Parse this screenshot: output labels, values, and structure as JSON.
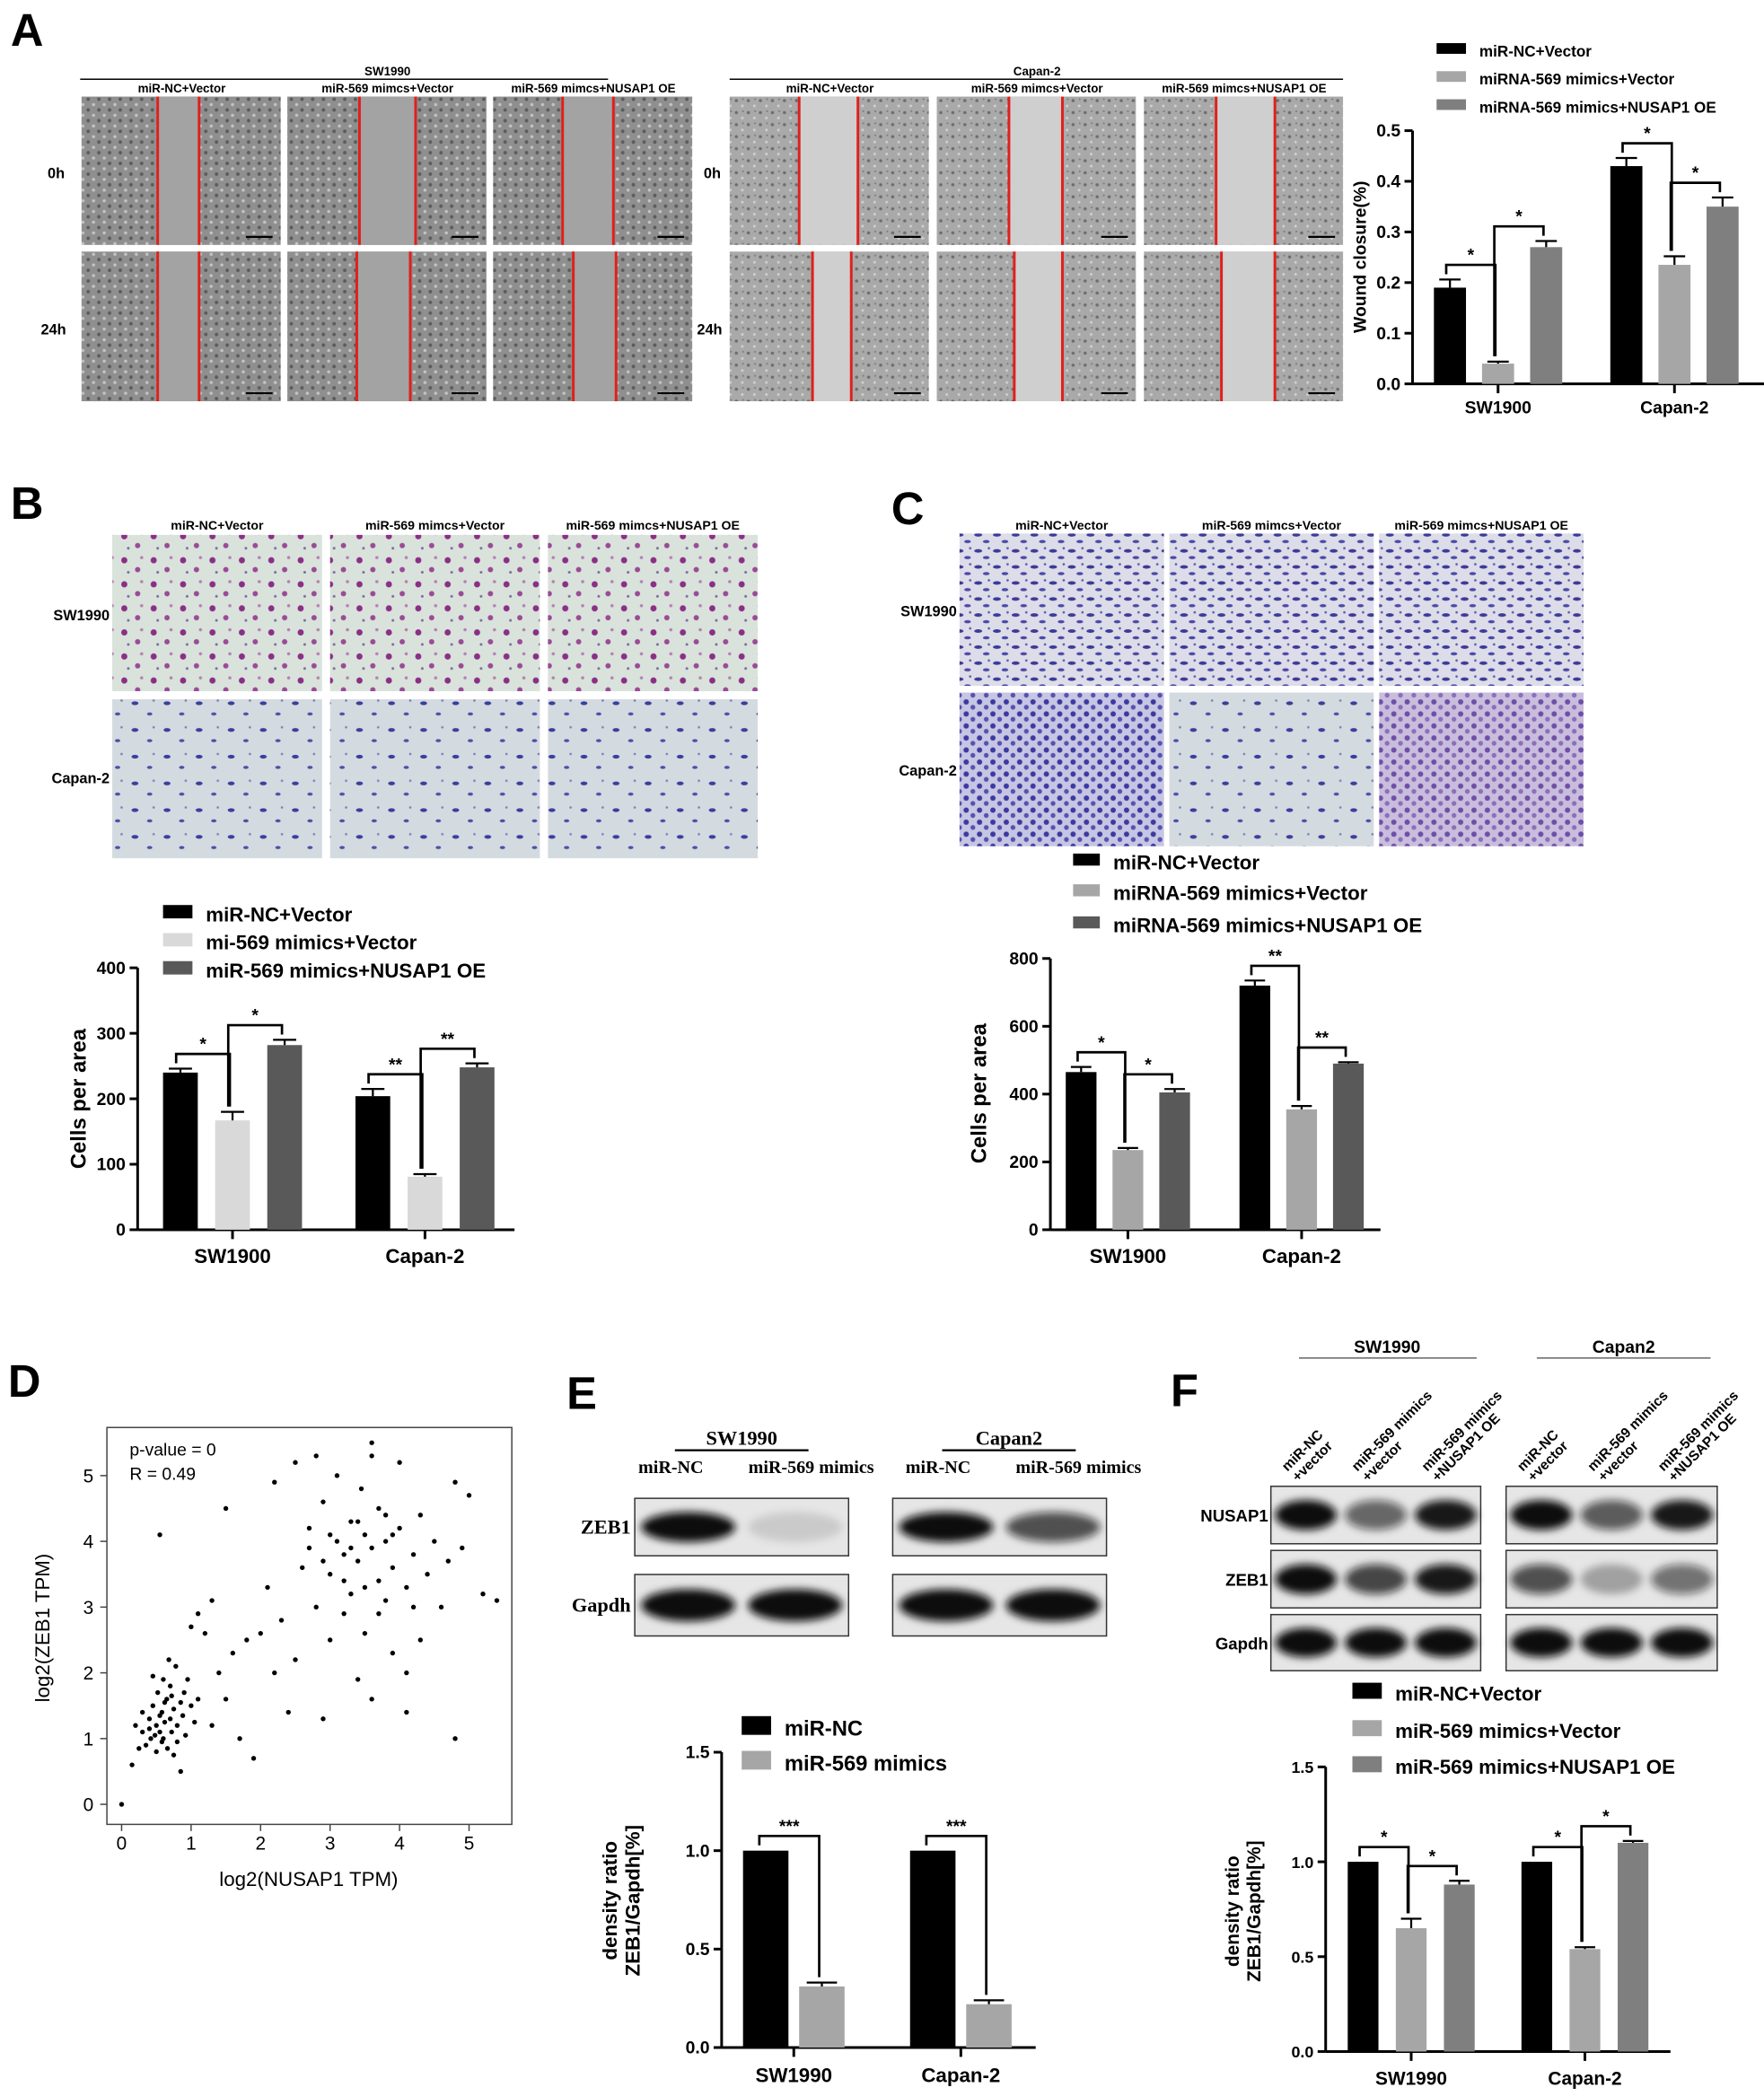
{
  "panel_a": {
    "letter": "A",
    "groups": [
      {
        "title": "SW1990",
        "columns": [
          "miR-NC+Vector",
          "miR-569 mimcs+Vector",
          "miR-569 mimcs+NUSAP1 OE"
        ],
        "rows": [
          "0h",
          "24h"
        ]
      },
      {
        "title": "Capan-2",
        "columns": [
          "miR-NC+Vector",
          "miR-569 mimcs+Vector",
          "miR-569 mimcs+NUSAP1 OE"
        ],
        "rows": [
          "0h",
          "24h"
        ]
      }
    ]
  },
  "panel_b": {
    "letter": "B",
    "columns": [
      "miR-NC+Vector",
      "miR-569 mimcs+Vector",
      "miR-569 mimcs+NUSAP1 OE"
    ],
    "rows": [
      "SW1990",
      "Capan-2"
    ]
  },
  "panel_c": {
    "letter": "C",
    "columns": [
      "miR-NC+Vector",
      "miR-569 mimcs+Vector",
      "miR-569 mimcs+NUSAP1 OE"
    ],
    "rows": [
      "SW1990",
      "Capan-2"
    ]
  },
  "panel_d": {
    "letter": "D"
  },
  "panel_e": {
    "letter": "E",
    "row_labels": [
      "ZEB1",
      "Gapdh"
    ],
    "groups": [
      {
        "title": "SW1990",
        "lanes": [
          "miR-NC",
          "miR-569 mimics"
        ],
        "bands": [
          [
            1.0,
            0.12
          ],
          [
            1.0,
            1.0
          ]
        ]
      },
      {
        "title": "Capan2",
        "lanes": [
          "miR-NC",
          "miR-569 mimics"
        ],
        "bands": [
          [
            1.0,
            0.7
          ],
          [
            1.0,
            1.0
          ]
        ]
      }
    ]
  },
  "panel_f": {
    "letter": "F",
    "row_labels": [
      "NUSAP1",
      "ZEB1",
      "Gapdh"
    ],
    "groups": [
      {
        "title": "SW1990",
        "lanes": [
          "miR-NC\n+vector",
          "miR-569 mimics\n+vector",
          "miR-569 mimics\n+NUSAP1 OE"
        ],
        "bands": [
          [
            1.0,
            0.6,
            0.95
          ],
          [
            1.0,
            0.75,
            0.95
          ],
          [
            1.0,
            1.0,
            1.0
          ]
        ]
      },
      {
        "title": "Capan2",
        "lanes": [
          "miR-NC\n+vector",
          "miR-569 mimics\n+vector",
          "miR-569 mimics\n+NUSAP1 OE"
        ],
        "bands": [
          [
            1.0,
            0.65,
            0.95
          ],
          [
            0.7,
            0.3,
            0.55
          ],
          [
            1.0,
            1.0,
            1.0
          ]
        ]
      }
    ]
  },
  "chart_data": [
    {
      "id": "A",
      "type": "bar",
      "title": "",
      "xlabel": "",
      "ylabel": "Wound closure(%)",
      "ylim": [
        0,
        0.5
      ],
      "yticks": [
        0,
        0.1,
        0.2,
        0.3,
        0.4,
        0.5
      ],
      "ytick_decimals": 1,
      "categories": [
        "SW1900",
        "Capan-2"
      ],
      "legend_position": "top",
      "series": [
        {
          "name": "miR-NC+Vector",
          "color": "#000000",
          "values": [
            0.19,
            0.43
          ],
          "errors": [
            0.016,
            0.016
          ]
        },
        {
          "name": "miRNA-569 mimics+Vector",
          "color": "#a6a6a6",
          "values": [
            0.04,
            0.235
          ],
          "errors": [
            0.004,
            0.017
          ]
        },
        {
          "name": "miRNA-569 mimics+NUSAP1 OE",
          "color": "#7f7f7f",
          "values": [
            0.27,
            0.35
          ],
          "errors": [
            0.012,
            0.018
          ]
        }
      ],
      "significance": [
        {
          "group": 0,
          "from": 0,
          "to": 1,
          "label": "*"
        },
        {
          "group": 0,
          "from": 1,
          "to": 2,
          "label": "*"
        },
        {
          "group": 1,
          "from": 0,
          "to": 1,
          "label": "*"
        },
        {
          "group": 1,
          "from": 1,
          "to": 2,
          "label": "*"
        }
      ]
    },
    {
      "id": "B",
      "type": "bar",
      "title": "",
      "xlabel": "",
      "ylabel": "Cells per area",
      "ylim": [
        0,
        400
      ],
      "yticks": [
        0,
        100,
        200,
        300,
        400
      ],
      "ytick_decimals": 0,
      "categories": [
        "SW1900",
        "Capan-2"
      ],
      "legend_position": "top",
      "series": [
        {
          "name": "miR-NC+Vector",
          "color": "#000000",
          "values": [
            240,
            204
          ],
          "errors": [
            6,
            11
          ]
        },
        {
          "name": "mi-569 mimics+Vector",
          "color": "#d9d9d9",
          "values": [
            167,
            81
          ],
          "errors": [
            13,
            4
          ]
        },
        {
          "name": "miR-569 mimics+NUSAP1 OE",
          "color": "#595959",
          "values": [
            282,
            248
          ],
          "errors": [
            8,
            6
          ]
        }
      ],
      "significance": [
        {
          "group": 0,
          "from": 0,
          "to": 1,
          "label": "*"
        },
        {
          "group": 0,
          "from": 1,
          "to": 2,
          "label": "*"
        },
        {
          "group": 1,
          "from": 0,
          "to": 1,
          "label": "**"
        },
        {
          "group": 1,
          "from": 1,
          "to": 2,
          "label": "**"
        }
      ]
    },
    {
      "id": "C",
      "type": "bar",
      "title": "",
      "xlabel": "",
      "ylabel": "Cells per area",
      "ylim": [
        0,
        800
      ],
      "yticks": [
        0,
        200,
        400,
        600,
        800
      ],
      "ytick_decimals": 0,
      "categories": [
        "SW1900",
        "Capan-2"
      ],
      "legend_position": "top",
      "series": [
        {
          "name": "miR-NC+Vector",
          "color": "#000000",
          "values": [
            465,
            720
          ],
          "errors": [
            15,
            15
          ]
        },
        {
          "name": "miRNA-569 mimics+Vector",
          "color": "#a6a6a6",
          "values": [
            235,
            355
          ],
          "errors": [
            6,
            10
          ]
        },
        {
          "name": "miRNA-569 mimics+NUSAP1 OE",
          "color": "#595959",
          "values": [
            405,
            490
          ],
          "errors": [
            10,
            4
          ]
        }
      ],
      "significance": [
        {
          "group": 0,
          "from": 0,
          "to": 1,
          "label": "*"
        },
        {
          "group": 0,
          "from": 1,
          "to": 2,
          "label": "*"
        },
        {
          "group": 1,
          "from": 0,
          "to": 1,
          "label": "**"
        },
        {
          "group": 1,
          "from": 1,
          "to": 2,
          "label": "**"
        }
      ]
    },
    {
      "id": "D",
      "type": "scatter",
      "title": "",
      "xlabel": "log2(NUSAP1 TPM)",
      "ylabel": "log2(ZEB1 TPM)",
      "xticks": [
        0,
        1,
        2,
        3,
        4,
        5
      ],
      "yticks": [
        0,
        1,
        2,
        3,
        4,
        5
      ],
      "annotations": [
        "p-value = 0",
        "R = 0.49"
      ],
      "points": [
        [
          0.3,
          1.1
        ],
        [
          0.35,
          0.9
        ],
        [
          0.4,
          1.3
        ],
        [
          0.42,
          1.0
        ],
        [
          0.45,
          1.5
        ],
        [
          0.5,
          1.2
        ],
        [
          0.5,
          0.8
        ],
        [
          0.52,
          1.7
        ],
        [
          0.55,
          1.1
        ],
        [
          0.58,
          1.4
        ],
        [
          0.6,
          1.9
        ],
        [
          0.6,
          1.0
        ],
        [
          0.62,
          1.25
        ],
        [
          0.65,
          1.6
        ],
        [
          0.66,
          0.85
        ],
        [
          0.7,
          1.3
        ],
        [
          0.7,
          1.8
        ],
        [
          0.72,
          1.1
        ],
        [
          0.75,
          1.45
        ],
        [
          0.78,
          2.1
        ],
        [
          0.8,
          1.2
        ],
        [
          0.8,
          0.95
        ],
        [
          0.85,
          1.55
        ],
        [
          0.88,
          1.35
        ],
        [
          0.9,
          1.7
        ],
        [
          0.92,
          1.05
        ],
        [
          0.95,
          1.9
        ],
        [
          1.0,
          1.5
        ],
        [
          1.05,
          1.25
        ],
        [
          1.1,
          1.6
        ],
        [
          0.25,
          0.85
        ],
        [
          0.2,
          1.2
        ],
        [
          0.15,
          0.6
        ],
        [
          0.0,
          0.0
        ],
        [
          0.45,
          1.95
        ],
        [
          0.68,
          2.2
        ],
        [
          0.55,
          1.35
        ],
        [
          0.75,
          0.75
        ],
        [
          0.3,
          1.4
        ],
        [
          0.85,
          0.5
        ],
        [
          0.4,
          1.15
        ],
        [
          0.62,
          1.55
        ],
        [
          0.48,
          1.05
        ],
        [
          0.72,
          1.65
        ],
        [
          0.58,
          0.95
        ],
        [
          1.0,
          2.7
        ],
        [
          0.55,
          4.1
        ],
        [
          1.2,
          2.6
        ],
        [
          1.3,
          1.2
        ],
        [
          1.5,
          1.6
        ],
        [
          1.4,
          2.0
        ],
        [
          1.6,
          2.3
        ],
        [
          1.7,
          1.0
        ],
        [
          1.9,
          0.7
        ],
        [
          1.8,
          2.5
        ],
        [
          1.5,
          4.5
        ],
        [
          1.1,
          2.9
        ],
        [
          1.3,
          3.1
        ],
        [
          2.0,
          2.6
        ],
        [
          2.1,
          3.3
        ],
        [
          2.2,
          2.0
        ],
        [
          2.4,
          1.4
        ],
        [
          2.3,
          2.8
        ],
        [
          2.5,
          2.2
        ],
        [
          2.6,
          3.6
        ],
        [
          2.7,
          4.2
        ],
        [
          2.8,
          3.0
        ],
        [
          2.9,
          4.6
        ],
        [
          3.0,
          3.5
        ],
        [
          3.0,
          2.5
        ],
        [
          3.1,
          4.0
        ],
        [
          3.1,
          5.0
        ],
        [
          3.2,
          3.8
        ],
        [
          3.2,
          2.9
        ],
        [
          3.3,
          4.3
        ],
        [
          3.3,
          3.2
        ],
        [
          3.4,
          3.7
        ],
        [
          3.4,
          1.9
        ],
        [
          3.5,
          4.1
        ],
        [
          3.5,
          2.6
        ],
        [
          3.6,
          3.9
        ],
        [
          3.6,
          5.3
        ],
        [
          3.7,
          3.4
        ],
        [
          3.7,
          4.5
        ],
        [
          3.8,
          3.1
        ],
        [
          3.8,
          4.0
        ],
        [
          3.9,
          2.3
        ],
        [
          3.9,
          3.6
        ],
        [
          4.0,
          4.2
        ],
        [
          4.0,
          5.2
        ],
        [
          4.1,
          3.3
        ],
        [
          4.1,
          2.0
        ],
        [
          4.2,
          3.8
        ],
        [
          4.3,
          4.4
        ],
        [
          4.3,
          2.5
        ],
        [
          4.4,
          3.5
        ],
        [
          4.5,
          4.0
        ],
        [
          4.6,
          3.0
        ],
        [
          4.7,
          3.7
        ],
        [
          4.8,
          4.9
        ],
        [
          4.8,
          1.0
        ],
        [
          4.9,
          3.9
        ],
        [
          5.0,
          4.7
        ],
        [
          5.4,
          3.1
        ],
        [
          5.2,
          3.2
        ],
        [
          2.9,
          1.3
        ],
        [
          4.1,
          1.4
        ],
        [
          3.6,
          1.6
        ],
        [
          2.7,
          3.9
        ],
        [
          3.45,
          4.8
        ],
        [
          2.2,
          4.9
        ],
        [
          2.5,
          5.2
        ],
        [
          2.8,
          5.3
        ],
        [
          3.6,
          5.5
        ],
        [
          3.3,
          3.9
        ],
        [
          3.5,
          3.3
        ],
        [
          3.8,
          4.4
        ],
        [
          3.0,
          4.1
        ],
        [
          3.2,
          3.4
        ],
        [
          3.9,
          4.1
        ],
        [
          2.9,
          3.7
        ],
        [
          3.4,
          4.3
        ],
        [
          3.7,
          2.9
        ],
        [
          4.2,
          3.0
        ]
      ]
    },
    {
      "id": "E",
      "type": "bar",
      "title": "",
      "xlabel": "",
      "ylabel": "density ratio\nZEB1/Gapdh[%]",
      "ylim": [
        0,
        1.5
      ],
      "yticks": [
        0,
        0.5,
        1.0,
        1.5
      ],
      "ytick_decimals": 1,
      "categories": [
        "SW1990",
        "Capan-2"
      ],
      "legend_position": "top",
      "series": [
        {
          "name": "miR-NC",
          "color": "#000000",
          "values": [
            1.0,
            1.0
          ],
          "errors": [
            0,
            0
          ]
        },
        {
          "name": "miR-569 mimics",
          "color": "#a6a6a6",
          "values": [
            0.31,
            0.22
          ],
          "errors": [
            0.02,
            0.02
          ]
        }
      ],
      "significance": [
        {
          "group": 0,
          "from": 0,
          "to": 1,
          "label": "***"
        },
        {
          "group": 1,
          "from": 0,
          "to": 1,
          "label": "***"
        }
      ]
    },
    {
      "id": "F",
      "type": "bar",
      "title": "",
      "xlabel": "",
      "ylabel": "density ratio\nZEB1/Gapdh[%]",
      "ylim": [
        0,
        1.5
      ],
      "yticks": [
        0,
        0.5,
        1.0,
        1.5
      ],
      "ytick_decimals": 1,
      "categories": [
        "SW1990",
        "Capan-2"
      ],
      "legend_position": "top",
      "series": [
        {
          "name": "miR-NC+Vector",
          "color": "#000000",
          "values": [
            1.0,
            1.0
          ],
          "errors": [
            0,
            0
          ]
        },
        {
          "name": "miR-569 mimics+Vector",
          "color": "#a6a6a6",
          "values": [
            0.65,
            0.54
          ],
          "errors": [
            0.05,
            0.01
          ]
        },
        {
          "name": "miR-569 mimics+NUSAP1 OE",
          "color": "#7f7f7f",
          "values": [
            0.88,
            1.1
          ],
          "errors": [
            0.02,
            0.01
          ]
        }
      ],
      "significance": [
        {
          "group": 0,
          "from": 0,
          "to": 1,
          "label": "*"
        },
        {
          "group": 0,
          "from": 1,
          "to": 2,
          "label": "*"
        },
        {
          "group": 1,
          "from": 0,
          "to": 1,
          "label": "*"
        },
        {
          "group": 1,
          "from": 1,
          "to": 2,
          "label": "*"
        }
      ]
    }
  ]
}
